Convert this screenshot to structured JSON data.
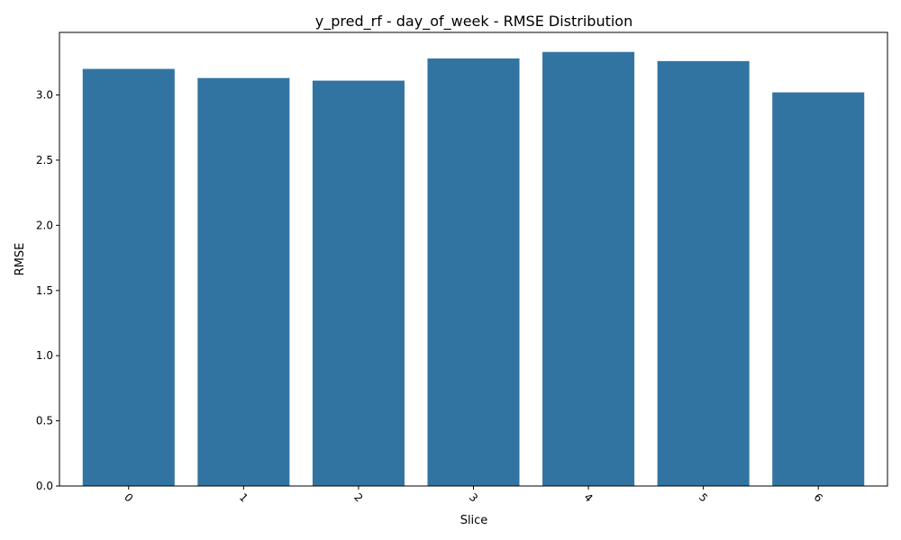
{
  "chart_data": {
    "type": "bar",
    "title": "y_pred_rf - day_of_week - RMSE Distribution",
    "xlabel": "Slice",
    "ylabel": "RMSE",
    "categories": [
      "0",
      "1",
      "2",
      "3",
      "4",
      "5",
      "6"
    ],
    "values": [
      3.2,
      3.13,
      3.11,
      3.28,
      3.33,
      3.26,
      3.02
    ],
    "ylim": [
      0,
      3.48
    ],
    "yticks": [
      "0.0",
      "0.5",
      "1.0",
      "1.5",
      "2.0",
      "2.5",
      "3.0"
    ],
    "x_tick_rotation": "45deg",
    "grid": false,
    "legend": "none",
    "bar_color": "#3274a1"
  }
}
